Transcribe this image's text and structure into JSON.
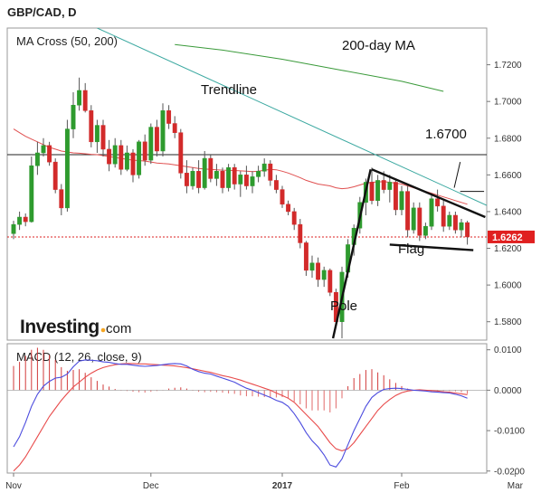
{
  "chart_data": [
    {
      "type": "candlestick",
      "title": "GBP/CAD, D",
      "panel_title": "MA Cross (50, 200)",
      "yticks": [
        1.58,
        1.6,
        1.62,
        1.64,
        1.66,
        1.68,
        1.7,
        1.72
      ],
      "ytick_labels": [
        "1.5800",
        "1.6000",
        "1.6200",
        "1.6400",
        "1.6600",
        "1.6800",
        "1.7000",
        "1.7200"
      ],
      "ylim": [
        1.57,
        1.74
      ],
      "xticks": [
        {
          "label": "Nov",
          "index": 0,
          "bold": false
        },
        {
          "label": "Dec",
          "index": 23,
          "bold": false
        },
        {
          "label": "2017",
          "index": 45,
          "bold": true
        },
        {
          "label": "Feb",
          "index": 65,
          "bold": false
        },
        {
          "label": "Mar",
          "index": 84,
          "bold": false
        }
      ],
      "last_price": 1.6262,
      "last_price_label": "1.6262",
      "candles": [
        [
          1.628,
          1.635,
          1.625,
          1.633
        ],
        [
          1.633,
          1.64,
          1.63,
          1.637
        ],
        [
          1.637,
          1.639,
          1.632,
          1.6345
        ],
        [
          1.6345,
          1.67,
          1.634,
          1.665
        ],
        [
          1.665,
          1.678,
          1.66,
          1.672
        ],
        [
          1.672,
          1.68,
          1.67,
          1.676
        ],
        [
          1.676,
          1.678,
          1.665,
          1.667
        ],
        [
          1.667,
          1.669,
          1.65,
          1.652
        ],
        [
          1.652,
          1.655,
          1.638,
          1.642
        ],
        [
          1.642,
          1.69,
          1.64,
          1.685
        ],
        [
          1.685,
          1.705,
          1.68,
          1.698
        ],
        [
          1.698,
          1.713,
          1.695,
          1.706
        ],
        [
          1.706,
          1.71,
          1.694,
          1.695
        ],
        [
          1.695,
          1.698,
          1.675,
          1.678
        ],
        [
          1.678,
          1.69,
          1.672,
          1.687
        ],
        [
          1.687,
          1.69,
          1.67,
          1.674
        ],
        [
          1.674,
          1.679,
          1.662,
          1.666
        ],
        [
          1.666,
          1.68,
          1.664,
          1.676
        ],
        [
          1.676,
          1.679,
          1.66,
          1.663
        ],
        [
          1.663,
          1.676,
          1.662,
          1.672
        ],
        [
          1.672,
          1.674,
          1.656,
          1.66
        ],
        [
          1.66,
          1.679,
          1.658,
          1.678
        ],
        [
          1.678,
          1.682,
          1.665,
          1.668
        ],
        [
          1.668,
          1.688,
          1.666,
          1.686
        ],
        [
          1.686,
          1.69,
          1.67,
          1.673
        ],
        [
          1.673,
          1.699,
          1.67,
          1.695
        ],
        [
          1.695,
          1.698,
          1.685,
          1.688
        ],
        [
          1.688,
          1.692,
          1.68,
          1.683
        ],
        [
          1.683,
          1.685,
          1.658,
          1.661
        ],
        [
          1.661,
          1.668,
          1.65,
          1.654
        ],
        [
          1.654,
          1.664,
          1.652,
          1.662
        ],
        [
          1.662,
          1.668,
          1.65,
          1.653
        ],
        [
          1.653,
          1.673,
          1.652,
          1.669
        ],
        [
          1.669,
          1.671,
          1.656,
          1.658
        ],
        [
          1.658,
          1.666,
          1.654,
          1.662
        ],
        [
          1.662,
          1.664,
          1.65,
          1.653
        ],
        [
          1.653,
          1.666,
          1.651,
          1.664
        ],
        [
          1.664,
          1.666,
          1.652,
          1.655
        ],
        [
          1.655,
          1.662,
          1.648,
          1.66
        ],
        [
          1.66,
          1.665,
          1.652,
          1.654
        ],
        [
          1.654,
          1.662,
          1.65,
          1.659
        ],
        [
          1.659,
          1.665,
          1.656,
          1.662
        ],
        [
          1.662,
          1.669,
          1.659,
          1.666
        ],
        [
          1.666,
          1.668,
          1.654,
          1.657
        ],
        [
          1.657,
          1.66,
          1.65,
          1.652
        ],
        [
          1.652,
          1.654,
          1.642,
          1.644
        ],
        [
          1.644,
          1.646,
          1.638,
          1.64
        ],
        [
          1.64,
          1.642,
          1.63,
          1.633
        ],
        [
          1.633,
          1.636,
          1.62,
          1.623
        ],
        [
          1.623,
          1.624,
          1.605,
          1.608
        ],
        [
          1.608,
          1.616,
          1.604,
          1.612
        ],
        [
          1.612,
          1.615,
          1.599,
          1.603
        ],
        [
          1.603,
          1.61,
          1.599,
          1.608
        ],
        [
          1.608,
          1.609,
          1.594,
          1.596
        ],
        [
          1.596,
          1.598,
          1.578,
          1.58
        ],
        [
          1.58,
          1.61,
          1.571,
          1.607
        ],
        [
          1.607,
          1.625,
          1.604,
          1.622
        ],
        [
          1.622,
          1.633,
          1.616,
          1.631
        ],
        [
          1.631,
          1.648,
          1.628,
          1.645
        ],
        [
          1.645,
          1.658,
          1.638,
          1.656
        ],
        [
          1.656,
          1.664,
          1.644,
          1.646
        ],
        [
          1.646,
          1.66,
          1.643,
          1.657
        ],
        [
          1.657,
          1.662,
          1.65,
          1.652
        ],
        [
          1.652,
          1.66,
          1.645,
          1.656
        ],
        [
          1.656,
          1.657,
          1.638,
          1.641
        ],
        [
          1.641,
          1.654,
          1.638,
          1.651
        ],
        [
          1.651,
          1.654,
          1.626,
          1.63
        ],
        [
          1.63,
          1.645,
          1.628,
          1.642
        ],
        [
          1.642,
          1.645,
          1.624,
          1.627
        ],
        [
          1.627,
          1.634,
          1.625,
          1.632
        ],
        [
          1.632,
          1.65,
          1.63,
          1.647
        ],
        [
          1.647,
          1.652,
          1.64,
          1.643
        ],
        [
          1.643,
          1.646,
          1.629,
          1.632
        ],
        [
          1.632,
          1.64,
          1.63,
          1.638
        ],
        [
          1.638,
          1.64,
          1.628,
          1.63
        ],
        [
          1.63,
          1.636,
          1.626,
          1.634
        ],
        [
          1.634,
          1.635,
          1.622,
          1.6262
        ]
      ],
      "ma50": [
        1.685,
        1.683,
        1.681,
        1.6795,
        1.678,
        1.6765,
        1.675,
        1.674,
        1.673,
        1.6725,
        1.672,
        1.6718,
        1.6715,
        1.6712,
        1.671,
        1.6705,
        1.67,
        1.6695,
        1.669,
        1.6685,
        1.668,
        1.6678,
        1.6675,
        1.667,
        1.6665,
        1.6662,
        1.666,
        1.6655,
        1.665,
        1.6645,
        1.664,
        1.6635,
        1.6632,
        1.663,
        1.6628,
        1.6626,
        1.6625,
        1.6624,
        1.6622,
        1.662,
        1.6618,
        1.662,
        1.6625,
        1.663,
        1.6628,
        1.662,
        1.661,
        1.6598,
        1.6585,
        1.657,
        1.656,
        1.655,
        1.6545,
        1.654,
        1.653,
        1.6525,
        1.6528,
        1.6535,
        1.6545,
        1.6555,
        1.656,
        1.6562,
        1.6563,
        1.656,
        1.6555,
        1.655,
        1.654,
        1.653,
        1.652,
        1.651,
        1.65,
        1.649,
        1.648,
        1.647,
        1.646,
        1.645,
        1.644
      ],
      "ma200": {
        "x": [
          27,
          35,
          45,
          55,
          65,
          72
        ],
        "y": [
          1.731,
          1.728,
          1.723,
          1.717,
          1.711,
          1.7055
        ]
      },
      "annotations": {
        "trendline_label": "Trendline",
        "ma200_label": "200-day MA",
        "level_label": "1.6700",
        "pole_label": "Pole",
        "flag_label": "Flag"
      },
      "trendline": {
        "x": [
          14,
          93
        ],
        "y": [
          1.74,
          1.623
        ]
      },
      "level": 1.671,
      "pole": {
        "x": [
          53.5,
          59.8
        ],
        "y": [
          1.571,
          1.663
        ]
      },
      "flag_upper": {
        "x": [
          60,
          79
        ],
        "y": [
          1.663,
          1.637
        ]
      },
      "flag_lower": {
        "x": [
          63,
          77
        ],
        "y": [
          1.622,
          1.619
        ]
      },
      "marker_line": {
        "x": [
          73.8,
          74.8
        ],
        "y": [
          1.653,
          1.667
        ]
      },
      "marker_tick": {
        "x": [
          74.8,
          78.8
        ],
        "y": [
          1.651,
          1.651
        ]
      }
    },
    {
      "type": "line",
      "panel_title": "MACD (12, 26, close, 9)",
      "yticks": [
        0.01,
        0.0,
        -0.01,
        -0.02
      ],
      "ytick_labels": [
        "0.0100",
        "0.0000",
        "-0.0100",
        "-0.0200"
      ],
      "ylim": [
        -0.0205,
        0.0115
      ],
      "series": [
        {
          "role": "macd",
          "color": "#4b4bde",
          "values": [
            -0.014,
            -0.0115,
            -0.008,
            -0.004,
            -0.001,
            0.001,
            0.0022,
            0.003,
            0.0032,
            0.004,
            0.0058,
            0.0072,
            0.0075,
            0.0074,
            0.0073,
            0.007,
            0.0069,
            0.0066,
            0.0064,
            0.0064,
            0.0062,
            0.006,
            0.0059,
            0.006,
            0.0061,
            0.0063,
            0.0065,
            0.0066,
            0.0065,
            0.006,
            0.0052,
            0.0046,
            0.0042,
            0.004,
            0.0035,
            0.003,
            0.0025,
            0.002,
            0.0012,
            0.0005,
            0.0,
            -0.0006,
            -0.0012,
            -0.0018,
            -0.0025,
            -0.003,
            -0.004,
            -0.0058,
            -0.008,
            -0.0105,
            -0.0125,
            -0.014,
            -0.016,
            -0.0185,
            -0.019,
            -0.017,
            -0.0135,
            -0.01,
            -0.007,
            -0.004,
            -0.0018,
            -0.0006,
            0.0002,
            0.0004,
            0.0005,
            0.0004,
            0.0002,
            0.0,
            -0.0001,
            -0.0002,
            -0.0004,
            -0.0005,
            -0.0006,
            -0.0007,
            -0.001,
            -0.0014,
            -0.002
          ]
        },
        {
          "role": "signal",
          "color": "#e84a4a",
          "values": [
            -0.02,
            -0.0185,
            -0.0165,
            -0.014,
            -0.0115,
            -0.009,
            -0.0065,
            -0.0045,
            -0.0025,
            -0.0008,
            0.0008,
            0.002,
            0.0032,
            0.0042,
            0.005,
            0.0056,
            0.006,
            0.0063,
            0.0065,
            0.0066,
            0.0066,
            0.0065,
            0.0065,
            0.0064,
            0.0063,
            0.0062,
            0.0061,
            0.006,
            0.0058,
            0.0056,
            0.0053,
            0.005,
            0.0047,
            0.0044,
            0.004,
            0.0036,
            0.0033,
            0.0029,
            0.0025,
            0.002,
            0.0015,
            0.001,
            0.0005,
            0.0,
            -0.0007,
            -0.0013,
            -0.002,
            -0.003,
            -0.0045,
            -0.006,
            -0.0075,
            -0.009,
            -0.011,
            -0.013,
            -0.0145,
            -0.015,
            -0.0145,
            -0.013,
            -0.011,
            -0.009,
            -0.007,
            -0.005,
            -0.0035,
            -0.0023,
            -0.0013,
            -0.0006,
            -0.0002,
            0.0,
            0.0001,
            0.0,
            -0.0001,
            -0.0002,
            -0.0004,
            -0.0005,
            -0.0007,
            -0.0009,
            -0.0011
          ]
        }
      ]
    }
  ]
}
